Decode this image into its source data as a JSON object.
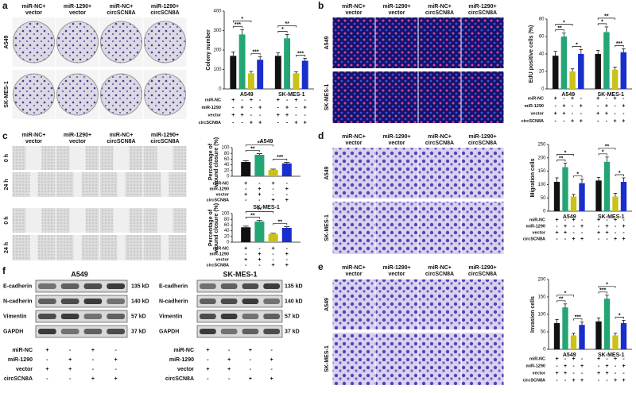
{
  "figure": {
    "panel_labels": [
      "a",
      "b",
      "c",
      "d",
      "e",
      "f"
    ],
    "image_columns": [
      [
        "miR-NC+",
        "vector"
      ],
      [
        "miR-1290+",
        "vector"
      ],
      [
        "miR-NC+",
        "circSCN8A"
      ],
      [
        "miR-1290+",
        "circSCN8A"
      ]
    ],
    "cell_lines": [
      "A549",
      "SK-MES-1"
    ],
    "time_points": [
      "0 h",
      "24 h"
    ]
  },
  "blot": {
    "titles": [
      "A549",
      "SK-MES-1"
    ],
    "proteins": [
      "E-cadherin",
      "N-cadherin",
      "Vimentin",
      "GAPDH"
    ],
    "sizes": [
      "135 kD",
      "140 kD",
      "57 kD",
      "37 kD"
    ],
    "conditions": [
      {
        "name": "miR-NC",
        "signs": [
          "+",
          "-",
          "+",
          "-"
        ]
      },
      {
        "name": "miR-1290",
        "signs": [
          "-",
          "+",
          "-",
          "+"
        ]
      },
      {
        "name": "vector",
        "signs": [
          "+",
          "+",
          "-",
          "-"
        ]
      },
      {
        "name": "circSCN8A",
        "signs": [
          "-",
          "-",
          "+",
          "+"
        ]
      }
    ]
  },
  "chart_data": [
    {
      "type": "bar",
      "y_label": [
        "Colony number"
      ],
      "categories": [
        "A549",
        "SK-MES-1"
      ],
      "ylim": [
        0,
        400
      ],
      "yticks": [
        0,
        100,
        200,
        300,
        400
      ],
      "series": [
        {
          "color": "#111111",
          "values": [
            170,
            170
          ],
          "errors": [
            20,
            15
          ]
        },
        {
          "color": "#23a574",
          "values": [
            280,
            260
          ],
          "errors": [
            25,
            20
          ]
        },
        {
          "color": "#c9c21a",
          "values": [
            80,
            80
          ],
          "errors": [
            10,
            8
          ]
        },
        {
          "color": "#1a2ecc",
          "values": [
            150,
            145
          ],
          "errors": [
            15,
            12
          ]
        }
      ],
      "significance": [
        {
          "label": "*",
          "category": 0,
          "from": 0,
          "to": 2
        },
        {
          "label": "***",
          "category": 0,
          "from": 0,
          "to": 1
        },
        {
          "label": "***",
          "category": 0,
          "from": 2,
          "to": 3
        },
        {
          "label": "**",
          "category": 1,
          "from": 0,
          "to": 2
        },
        {
          "label": "*",
          "category": 1,
          "from": 0,
          "to": 1
        },
        {
          "label": "***",
          "category": 1,
          "from": 2,
          "to": 3
        }
      ],
      "conditions": [
        {
          "name": "miR-NC",
          "signs": [
            "+",
            "-",
            "+",
            "-",
            "+",
            "-",
            "+",
            "-"
          ]
        },
        {
          "name": "miR-1290",
          "signs": [
            "-",
            "+",
            "-",
            "+",
            "-",
            "+",
            "-",
            "+"
          ]
        },
        {
          "name": "vector",
          "signs": [
            "+",
            "+",
            "-",
            "-",
            "+",
            "+",
            "-",
            "-"
          ]
        },
        {
          "name": "circSCN8A",
          "signs": [
            "-",
            "-",
            "+",
            "+",
            "-",
            "-",
            "+",
            "+"
          ]
        }
      ]
    },
    {
      "type": "bar",
      "y_label": [
        "EdU positive cells (%)"
      ],
      "categories": [
        "A549",
        "SK-MES-1"
      ],
      "ylim": [
        0,
        80
      ],
      "yticks": [
        0,
        20,
        40,
        60,
        80
      ],
      "series": [
        {
          "color": "#111111",
          "values": [
            38,
            40
          ],
          "errors": [
            5,
            4
          ]
        },
        {
          "color": "#23a574",
          "values": [
            60,
            65
          ],
          "errors": [
            4,
            6
          ]
        },
        {
          "color": "#c9c21a",
          "values": [
            20,
            22
          ],
          "errors": [
            3,
            3
          ]
        },
        {
          "color": "#1a2ecc",
          "values": [
            40,
            42
          ],
          "errors": [
            5,
            4
          ]
        }
      ],
      "significance": [
        {
          "label": "*",
          "category": 0,
          "from": 0,
          "to": 2
        },
        {
          "label": "**",
          "category": 0,
          "from": 0,
          "to": 1
        },
        {
          "label": "*",
          "category": 0,
          "from": 2,
          "to": 3
        },
        {
          "label": "**",
          "category": 1,
          "from": 0,
          "to": 2
        },
        {
          "label": "*",
          "category": 1,
          "from": 0,
          "to": 1
        },
        {
          "label": "***",
          "category": 1,
          "from": 2,
          "to": 3
        }
      ],
      "conditions": [
        {
          "name": "miR-NC",
          "signs": [
            "+",
            "-",
            "+",
            "-",
            "+",
            "-",
            "+",
            "-"
          ]
        },
        {
          "name": "miR-1290",
          "signs": [
            "-",
            "+",
            "-",
            "+",
            "-",
            "+",
            "-",
            "+"
          ]
        },
        {
          "name": "vector",
          "signs": [
            "+",
            "+",
            "-",
            "-",
            "+",
            "+",
            "-",
            "-"
          ]
        },
        {
          "name": "circSCN8A",
          "signs": [
            "-",
            "-",
            "+",
            "+",
            "-",
            "-",
            "+",
            "+"
          ]
        }
      ]
    },
    {
      "type": "bar",
      "title": "A549",
      "y_label": [
        "Percentage of",
        "wound closure (%)"
      ],
      "ylim": [
        0,
        100
      ],
      "yticks": [
        0,
        20,
        40,
        60,
        80,
        100
      ],
      "series": [
        {
          "color": "#111111",
          "values": [
            50
          ],
          "errors": [
            4
          ]
        },
        {
          "color": "#23a574",
          "values": [
            75
          ],
          "errors": [
            4
          ]
        },
        {
          "color": "#c9c21a",
          "values": [
            22
          ],
          "errors": [
            3
          ]
        },
        {
          "color": "#1a2ecc",
          "values": [
            45
          ],
          "errors": [
            4
          ]
        }
      ],
      "significance": [
        {
          "label": "**",
          "category": 0,
          "from": 0,
          "to": 2
        },
        {
          "label": "**",
          "category": 0,
          "from": 0,
          "to": 1
        },
        {
          "label": "***",
          "category": 0,
          "from": 2,
          "to": 3
        }
      ],
      "conditions": [
        {
          "name": "miR-NC",
          "signs": [
            "+",
            "-",
            "+",
            "-"
          ]
        },
        {
          "name": "miR-1290",
          "signs": [
            "-",
            "+",
            "-",
            "+"
          ]
        },
        {
          "name": "vector",
          "signs": [
            "+",
            "+",
            "-",
            "-"
          ]
        },
        {
          "name": "circSCN8A",
          "signs": [
            "-",
            "-",
            "+",
            "+"
          ]
        }
      ]
    },
    {
      "type": "bar",
      "title": "SK-MES-1",
      "y_label": [
        "Percentage of",
        "wound closure (%)"
      ],
      "ylim": [
        0,
        100
      ],
      "yticks": [
        0,
        20,
        40,
        60,
        80,
        100
      ],
      "series": [
        {
          "color": "#111111",
          "values": [
            52
          ],
          "errors": [
            4
          ]
        },
        {
          "color": "#23a574",
          "values": [
            72
          ],
          "errors": [
            4
          ]
        },
        {
          "color": "#c9c21a",
          "values": [
            28
          ],
          "errors": [
            3
          ]
        },
        {
          "color": "#1a2ecc",
          "values": [
            50
          ],
          "errors": [
            4
          ]
        }
      ],
      "significance": [
        {
          "label": "**",
          "category": 0,
          "from": 0,
          "to": 2
        },
        {
          "label": "**",
          "category": 0,
          "from": 0,
          "to": 1
        },
        {
          "label": "**",
          "category": 0,
          "from": 2,
          "to": 3
        }
      ],
      "conditions": [
        {
          "name": "miR-NC",
          "signs": [
            "+",
            "-",
            "+",
            "-"
          ]
        },
        {
          "name": "miR-1290",
          "signs": [
            "-",
            "+",
            "-",
            "+"
          ]
        },
        {
          "name": "vector",
          "signs": [
            "+",
            "+",
            "-",
            "-"
          ]
        },
        {
          "name": "circSCN8A",
          "signs": [
            "-",
            "-",
            "+",
            "+"
          ]
        }
      ]
    },
    {
      "type": "bar",
      "y_label": [
        "Migration cells"
      ],
      "categories": [
        "A549",
        "SK-MES-1"
      ],
      "ylim": [
        0,
        250
      ],
      "yticks": [
        0,
        50,
        100,
        150,
        200,
        250
      ],
      "series": [
        {
          "color": "#111111",
          "values": [
            110,
            115
          ],
          "errors": [
            15,
            12
          ]
        },
        {
          "color": "#23a574",
          "values": [
            165,
            185
          ],
          "errors": [
            15,
            18
          ]
        },
        {
          "color": "#c9c21a",
          "values": [
            55,
            55
          ],
          "errors": [
            8,
            12
          ]
        },
        {
          "color": "#1a2ecc",
          "values": [
            105,
            110
          ],
          "errors": [
            15,
            15
          ]
        }
      ],
      "significance": [
        {
          "label": "*",
          "category": 0,
          "from": 0,
          "to": 2
        },
        {
          "label": "**",
          "category": 0,
          "from": 0,
          "to": 1
        },
        {
          "label": "*",
          "category": 0,
          "from": 2,
          "to": 3
        },
        {
          "label": "**",
          "category": 1,
          "from": 0,
          "to": 2
        },
        {
          "label": "*",
          "category": 1,
          "from": 0,
          "to": 1
        },
        {
          "label": "*",
          "category": 1,
          "from": 2,
          "to": 3
        }
      ],
      "conditions": [
        {
          "name": "miR-NC",
          "signs": [
            "+",
            "-",
            "+",
            "-",
            "+",
            "-",
            "+",
            "-"
          ]
        },
        {
          "name": "miR-1290",
          "signs": [
            "-",
            "+",
            "-",
            "+",
            "-",
            "+",
            "-",
            "+"
          ]
        },
        {
          "name": "vector",
          "signs": [
            "+",
            "+",
            "-",
            "-",
            "+",
            "+",
            "-",
            "-"
          ]
        },
        {
          "name": "circSCN8A",
          "signs": [
            "-",
            "-",
            "+",
            "+",
            "-",
            "-",
            "+",
            "+"
          ]
        }
      ]
    },
    {
      "type": "bar",
      "y_label": [
        "Invasion cells"
      ],
      "categories": [
        "A549",
        "SK-MES-1"
      ],
      "ylim": [
        0,
        200
      ],
      "yticks": [
        0,
        50,
        100,
        150,
        200
      ],
      "series": [
        {
          "color": "#111111",
          "values": [
            75,
            80
          ],
          "errors": [
            10,
            10
          ]
        },
        {
          "color": "#23a574",
          "values": [
            120,
            145
          ],
          "errors": [
            10,
            10
          ]
        },
        {
          "color": "#c9c21a",
          "values": [
            40,
            40
          ],
          "errors": [
            6,
            6
          ]
        },
        {
          "color": "#1a2ecc",
          "values": [
            70,
            75
          ],
          "errors": [
            8,
            8
          ]
        }
      ],
      "significance": [
        {
          "label": "*",
          "category": 0,
          "from": 0,
          "to": 2
        },
        {
          "label": "**",
          "category": 0,
          "from": 0,
          "to": 1
        },
        {
          "label": "***",
          "category": 0,
          "from": 2,
          "to": 3
        },
        {
          "label": "*",
          "category": 1,
          "from": 0,
          "to": 2
        },
        {
          "label": "***",
          "category": 1,
          "from": 0,
          "to": 1
        },
        {
          "label": "*",
          "category": 1,
          "from": 2,
          "to": 3
        }
      ],
      "conditions": [
        {
          "name": "miR-NC",
          "signs": [
            "+",
            "-",
            "+",
            "-",
            "+",
            "-",
            "+",
            "-"
          ]
        },
        {
          "name": "miR-1290",
          "signs": [
            "-",
            "+",
            "-",
            "+",
            "-",
            "+",
            "-",
            "+"
          ]
        },
        {
          "name": "vector",
          "signs": [
            "+",
            "+",
            "-",
            "-",
            "+",
            "+",
            "-",
            "-"
          ]
        },
        {
          "name": "circSCN8A",
          "signs": [
            "-",
            "-",
            "+",
            "+",
            "-",
            "-",
            "+",
            "+"
          ]
        }
      ]
    }
  ]
}
